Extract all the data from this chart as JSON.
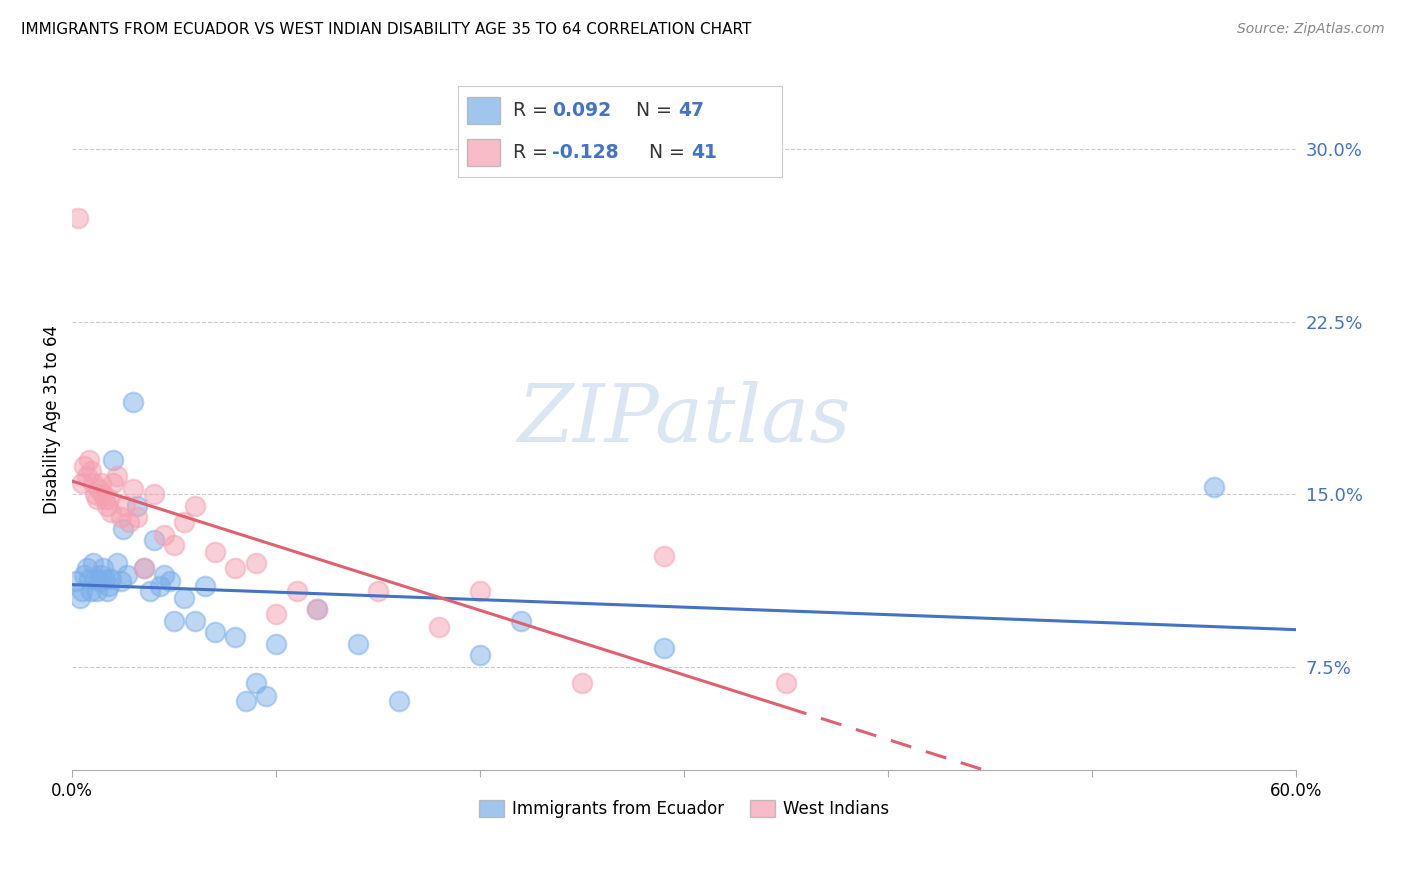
{
  "title": "IMMIGRANTS FROM ECUADOR VS WEST INDIAN DISABILITY AGE 35 TO 64 CORRELATION CHART",
  "source": "Source: ZipAtlas.com",
  "ylabel": "Disability Age 35 to 64",
  "ytick_values": [
    0.075,
    0.15,
    0.225,
    0.3
  ],
  "xlim": [
    0.0,
    0.6
  ],
  "ylim": [
    0.03,
    0.335
  ],
  "color_blue": "#7aaee8",
  "color_pink": "#f4a0b0",
  "color_blue_line": "#4472c4",
  "color_pink_line": "#e06070",
  "ecuador_x": [
    0.002,
    0.004,
    0.005,
    0.006,
    0.007,
    0.008,
    0.009,
    0.01,
    0.011,
    0.012,
    0.013,
    0.014,
    0.015,
    0.016,
    0.017,
    0.018,
    0.019,
    0.02,
    0.022,
    0.024,
    0.025,
    0.027,
    0.03,
    0.032,
    0.035,
    0.038,
    0.04,
    0.043,
    0.045,
    0.048,
    0.05,
    0.055,
    0.06,
    0.065,
    0.07,
    0.08,
    0.085,
    0.09,
    0.095,
    0.1,
    0.12,
    0.14,
    0.16,
    0.2,
    0.22,
    0.29,
    0.56
  ],
  "ecuador_y": [
    0.112,
    0.105,
    0.108,
    0.115,
    0.118,
    0.113,
    0.108,
    0.12,
    0.113,
    0.108,
    0.112,
    0.115,
    0.118,
    0.113,
    0.108,
    0.11,
    0.113,
    0.165,
    0.12,
    0.112,
    0.135,
    0.115,
    0.19,
    0.145,
    0.118,
    0.108,
    0.13,
    0.11,
    0.115,
    0.112,
    0.095,
    0.105,
    0.095,
    0.11,
    0.09,
    0.088,
    0.06,
    0.068,
    0.062,
    0.085,
    0.1,
    0.085,
    0.06,
    0.08,
    0.095,
    0.083,
    0.153
  ],
  "westindian_x": [
    0.003,
    0.005,
    0.006,
    0.007,
    0.008,
    0.009,
    0.01,
    0.011,
    0.012,
    0.013,
    0.014,
    0.015,
    0.016,
    0.017,
    0.018,
    0.019,
    0.02,
    0.022,
    0.024,
    0.026,
    0.028,
    0.03,
    0.032,
    0.035,
    0.04,
    0.045,
    0.05,
    0.055,
    0.06,
    0.07,
    0.08,
    0.09,
    0.1,
    0.11,
    0.12,
    0.15,
    0.18,
    0.2,
    0.25,
    0.29,
    0.35
  ],
  "westindian_y": [
    0.27,
    0.155,
    0.162,
    0.158,
    0.165,
    0.16,
    0.155,
    0.15,
    0.148,
    0.152,
    0.155,
    0.15,
    0.148,
    0.145,
    0.148,
    0.142,
    0.155,
    0.158,
    0.14,
    0.145,
    0.138,
    0.152,
    0.14,
    0.118,
    0.15,
    0.132,
    0.128,
    0.138,
    0.145,
    0.125,
    0.118,
    0.12,
    0.098,
    0.108,
    0.1,
    0.108,
    0.092,
    0.108,
    0.068,
    0.123,
    0.068
  ],
  "watermark": "ZIPatlas",
  "background_color": "#ffffff",
  "grid_color": "#cccccc",
  "solid_cutoff": 0.35
}
